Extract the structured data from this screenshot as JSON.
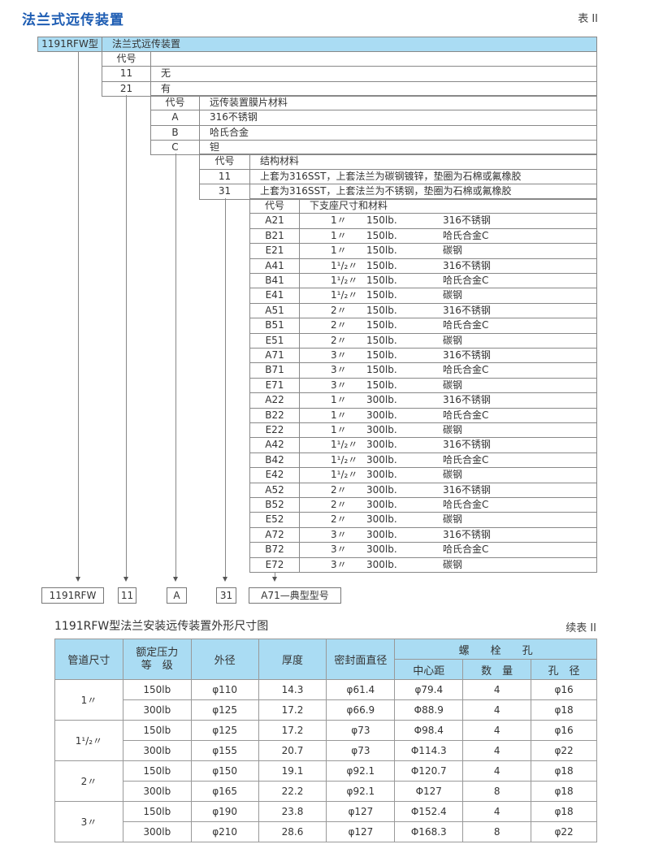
{
  "header": {
    "title": "法兰式远传装置",
    "table_tag": "表 II"
  },
  "model": {
    "code": "1191RFW型",
    "name": "法兰式远传装置"
  },
  "level1": {
    "header_code": "代号",
    "header_desc": "",
    "rows": [
      {
        "code": "11",
        "desc": "无"
      },
      {
        "code": "21",
        "desc": "有"
      }
    ]
  },
  "level2": {
    "header_code": "代号",
    "header_desc": "远传装置膜片材料",
    "rows": [
      {
        "code": "A",
        "desc": "316不锈钢"
      },
      {
        "code": "B",
        "desc": "哈氏合金"
      },
      {
        "code": "C",
        "desc": "钽"
      }
    ]
  },
  "level3": {
    "header_code": "代号",
    "header_desc": "结构材料",
    "rows": [
      {
        "code": "11",
        "desc": "上套为316SST，上套法兰为碳钢镀锌，垫圈为石棉或氟橡胶"
      },
      {
        "code": "31",
        "desc": "上套为316SST，上套法兰为不锈钢，垫圈为石棉或氟橡胶"
      }
    ]
  },
  "level4": {
    "header_code": "代号",
    "header_desc": "下支座尺寸和材料",
    "rows": [
      {
        "code": "A21",
        "size": "1〃",
        "rating": "150lb.",
        "material": "316不锈钢"
      },
      {
        "code": "B21",
        "size": "1〃",
        "rating": "150lb.",
        "material": "哈氏合金C"
      },
      {
        "code": "E21",
        "size": "1〃",
        "rating": "150lb.",
        "material": "碳钢"
      },
      {
        "code": "A41",
        "size": "1¹/₂〃",
        "rating": "150lb.",
        "material": "316不锈钢"
      },
      {
        "code": "B41",
        "size": "1¹/₂〃",
        "rating": "150lb.",
        "material": "哈氏合金C"
      },
      {
        "code": "E41",
        "size": "1¹/₂〃",
        "rating": "150lb.",
        "material": "碳钢"
      },
      {
        "code": "A51",
        "size": "2〃",
        "rating": "150lb.",
        "material": "316不锈钢"
      },
      {
        "code": "B51",
        "size": "2〃",
        "rating": "150lb.",
        "material": "哈氏合金C"
      },
      {
        "code": "E51",
        "size": "2〃",
        "rating": "150lb.",
        "material": "碳钢"
      },
      {
        "code": "A71",
        "size": "3〃",
        "rating": "150lb.",
        "material": "316不锈钢"
      },
      {
        "code": "B71",
        "size": "3〃",
        "rating": "150lb.",
        "material": "哈氏合金C"
      },
      {
        "code": "E71",
        "size": "3〃",
        "rating": "150lb.",
        "material": "碳钢"
      },
      {
        "code": "A22",
        "size": "1〃",
        "rating": "300lb.",
        "material": "316不锈钢"
      },
      {
        "code": "B22",
        "size": "1〃",
        "rating": "300lb.",
        "material": "哈氏合金C"
      },
      {
        "code": "E22",
        "size": "1〃",
        "rating": "300lb.",
        "material": "碳钢"
      },
      {
        "code": "A42",
        "size": "1¹/₂〃",
        "rating": "300lb.",
        "material": "316不锈钢"
      },
      {
        "code": "B42",
        "size": "1¹/₂〃",
        "rating": "300lb.",
        "material": "哈氏合金C"
      },
      {
        "code": "E42",
        "size": "1¹/₂〃",
        "rating": "300lb.",
        "material": "碳钢"
      },
      {
        "code": "A52",
        "size": "2〃",
        "rating": "300lb.",
        "material": "316不锈钢"
      },
      {
        "code": "B52",
        "size": "2〃",
        "rating": "300lb.",
        "material": "哈氏合金C"
      },
      {
        "code": "E52",
        "size": "2〃",
        "rating": "300lb.",
        "material": "碳钢"
      },
      {
        "code": "A72",
        "size": "3〃",
        "rating": "300lb.",
        "material": "316不锈钢"
      },
      {
        "code": "B72",
        "size": "3〃",
        "rating": "300lb.",
        "material": "哈氏合金C"
      },
      {
        "code": "E72",
        "size": "3〃",
        "rating": "300lb.",
        "material": "碳钢"
      }
    ]
  },
  "example": {
    "model": "1191RFW",
    "seal": "11",
    "diaphragm": "A",
    "structure": "31",
    "base": "A71—典型型号"
  },
  "dimensions": {
    "subtitle": "1191RFW型法兰安装远传装置外形尺寸图",
    "table_tag": "续表 II",
    "headers": {
      "pipe_size": "管道尺寸",
      "rating": "额定压力\n等　级",
      "od": "外径",
      "thickness": "厚度",
      "seal_face": "密封面直径",
      "bolt_holes": "螺　　栓　　孔",
      "pcd": "中心距",
      "count": "数　量",
      "hole_dia": "孔　径"
    },
    "groups": [
      {
        "size": "1〃",
        "rows": [
          {
            "rating": "150lb",
            "od": "φ110",
            "thickness": "14.3",
            "seal_face": "φ61.4",
            "pcd": "φ79.4",
            "count": "4",
            "hole_dia": "φ16"
          },
          {
            "rating": "300lb",
            "od": "φ125",
            "thickness": "17.2",
            "seal_face": "φ66.9",
            "pcd": "Φ88.9",
            "count": "4",
            "hole_dia": "φ18"
          }
        ]
      },
      {
        "size": "1¹/₂〃",
        "rows": [
          {
            "rating": "150lb",
            "od": "φ125",
            "thickness": "17.2",
            "seal_face": "φ73",
            "pcd": "Φ98.4",
            "count": "4",
            "hole_dia": "φ16"
          },
          {
            "rating": "300lb",
            "od": "φ155",
            "thickness": "20.7",
            "seal_face": "φ73",
            "pcd": "Φ114.3",
            "count": "4",
            "hole_dia": "φ22"
          }
        ]
      },
      {
        "size": "2〃",
        "rows": [
          {
            "rating": "150lb",
            "od": "φ150",
            "thickness": "19.1",
            "seal_face": "φ92.1",
            "pcd": "Φ120.7",
            "count": "4",
            "hole_dia": "φ18"
          },
          {
            "rating": "300lb",
            "od": "φ165",
            "thickness": "22.2",
            "seal_face": "φ92.1",
            "pcd": "Φ127",
            "count": "8",
            "hole_dia": "φ18"
          }
        ]
      },
      {
        "size": "3〃",
        "rows": [
          {
            "rating": "150lb",
            "od": "φ190",
            "thickness": "23.8",
            "seal_face": "φ127",
            "pcd": "Φ152.4",
            "count": "4",
            "hole_dia": "φ18"
          },
          {
            "rating": "300lb",
            "od": "φ210",
            "thickness": "28.6",
            "seal_face": "φ127",
            "pcd": "Φ168.3",
            "count": "8",
            "hole_dia": "φ22"
          }
        ]
      }
    ]
  }
}
